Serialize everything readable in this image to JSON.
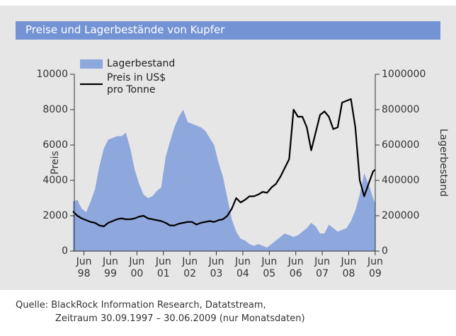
{
  "chart_data": {
    "type": "line",
    "title": "Preise und Lagerbestände von Kupfer",
    "y_label": "Preis",
    "y2_label": "Lagerbestand",
    "footnote": [
      "Quelle: BlackRock Information Research, Datatstream,",
      "Zeitraum 30.09.1997 – 30.06.2009 (nur Monatsdaten)"
    ],
    "x": [
      "1998-01",
      "1998-03",
      "1998-05",
      "1998-07",
      "1998-09",
      "1998-11",
      "1999-01",
      "1999-03",
      "1999-05",
      "1999-07",
      "1999-09",
      "1999-11",
      "2000-01",
      "2000-03",
      "2000-05",
      "2000-07",
      "2000-09",
      "2000-11",
      "2001-01",
      "2001-03",
      "2001-05",
      "2001-07",
      "2001-09",
      "2001-11",
      "2002-01",
      "2002-03",
      "2002-05",
      "2002-07",
      "2002-09",
      "2002-11",
      "2003-01",
      "2003-03",
      "2003-05",
      "2003-07",
      "2003-09",
      "2003-11",
      "2004-01",
      "2004-03",
      "2004-05",
      "2004-07",
      "2004-09",
      "2004-11",
      "2005-01",
      "2005-03",
      "2005-05",
      "2005-07",
      "2005-09",
      "2005-11",
      "2006-01",
      "2006-03",
      "2006-05",
      "2006-07",
      "2006-09",
      "2006-11",
      "2007-01",
      "2007-03",
      "2007-05",
      "2007-07",
      "2007-09",
      "2007-11",
      "2008-01",
      "2008-03",
      "2008-05",
      "2008-07",
      "2008-09",
      "2008-11",
      "2009-01",
      "2009-03",
      "2009-05",
      "2009-06"
    ],
    "xlim": [
      "1998-01",
      "2009-07"
    ],
    "xticks": [
      {
        "value": "1998-06",
        "label": "Jun 98"
      },
      {
        "value": "1999-06",
        "label": "Jun 99"
      },
      {
        "value": "2000-06",
        "label": "Jun 00"
      },
      {
        "value": "2001-06",
        "label": "Jun 01"
      },
      {
        "value": "2002-06",
        "label": "Jun 02"
      },
      {
        "value": "2003-06",
        "label": "Jun 03"
      },
      {
        "value": "2004-06",
        "label": "Jun 04"
      },
      {
        "value": "2005-06",
        "label": "Jun 05"
      },
      {
        "value": "2006-06",
        "label": "Jun 06"
      },
      {
        "value": "2007-06",
        "label": "Jun 07"
      },
      {
        "value": "2008-06",
        "label": "Jun 08"
      },
      {
        "value": "2009-06",
        "label": "Jun 09"
      }
    ],
    "ylim": [
      0,
      10000
    ],
    "yticks": [
      0,
      2000,
      4000,
      6000,
      8000,
      10000
    ],
    "y2lim": [
      0,
      1000000
    ],
    "y2ticks": [
      0,
      200000,
      400000,
      600000,
      800000,
      1000000
    ],
    "grid": false,
    "series": [
      {
        "name": "Lagerbestand",
        "type": "area",
        "axis": "y2",
        "color": "#8ea7dc",
        "values": [
          280000,
          290000,
          240000,
          220000,
          280000,
          350000,
          480000,
          580000,
          630000,
          640000,
          650000,
          650000,
          670000,
          580000,
          460000,
          380000,
          320000,
          300000,
          310000,
          340000,
          360000,
          530000,
          620000,
          700000,
          760000,
          800000,
          730000,
          720000,
          710000,
          700000,
          680000,
          640000,
          600000,
          500000,
          420000,
          300000,
          180000,
          110000,
          70000,
          60000,
          40000,
          30000,
          40000,
          30000,
          20000,
          40000,
          60000,
          80000,
          100000,
          90000,
          80000,
          90000,
          110000,
          130000,
          160000,
          140000,
          100000,
          100000,
          150000,
          130000,
          110000,
          120000,
          130000,
          170000,
          230000,
          320000,
          440000,
          380000,
          300000,
          270000
        ]
      },
      {
        "name": "Preis in US$ pro Tonne",
        "type": "line",
        "color": "#000000",
        "values": [
          2250,
          2000,
          1850,
          1750,
          1650,
          1600,
          1450,
          1400,
          1600,
          1700,
          1800,
          1850,
          1800,
          1800,
          1850,
          1950,
          2000,
          1850,
          1800,
          1750,
          1700,
          1600,
          1450,
          1450,
          1550,
          1600,
          1650,
          1650,
          1500,
          1600,
          1650,
          1700,
          1650,
          1750,
          1800,
          2000,
          2400,
          3000,
          2750,
          2900,
          3100,
          3100,
          3200,
          3350,
          3300,
          3600,
          3800,
          4200,
          4700,
          5200,
          8000,
          7600,
          7600,
          7000,
          5700,
          6700,
          7700,
          7900,
          7600,
          6900,
          7000,
          8400,
          8500,
          8600,
          7000,
          4000,
          3100,
          3800,
          4500,
          4600
        ]
      }
    ]
  }
}
